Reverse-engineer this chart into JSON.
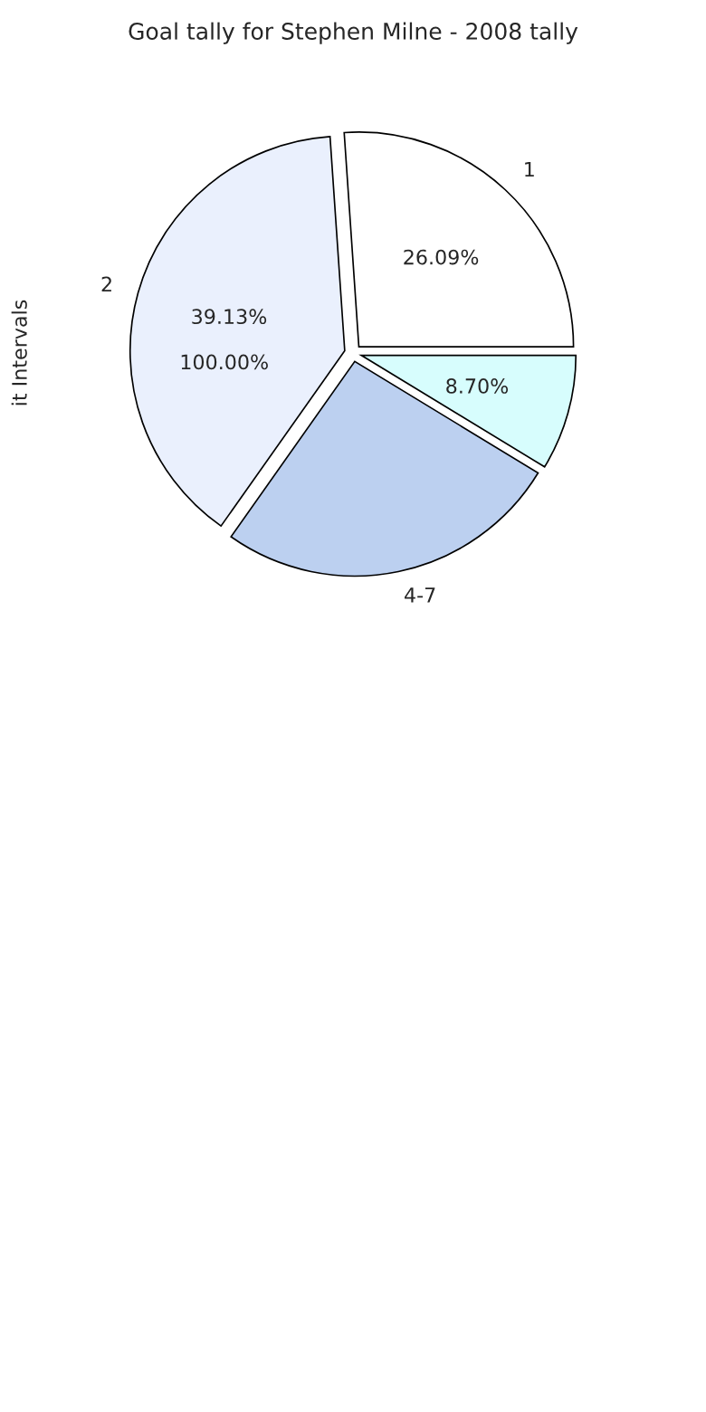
{
  "chart_data": {
    "type": "pie",
    "title": "Goal tally for Stephen Milne - 2008 tally",
    "ylabel": "it Intervals",
    "categories": [
      "1",
      "2",
      "4-7",
      null
    ],
    "values": [
      26.09,
      39.13,
      26.08,
      8.7
    ],
    "colors": [
      "#ffffff",
      "#eaf0fd",
      "#bcd0f0",
      "#d7fdfd"
    ],
    "value_labels": [
      "26.09%",
      "39.13%",
      null,
      "8.70%"
    ],
    "annotations": [
      "100.00%"
    ],
    "legend": false
  }
}
